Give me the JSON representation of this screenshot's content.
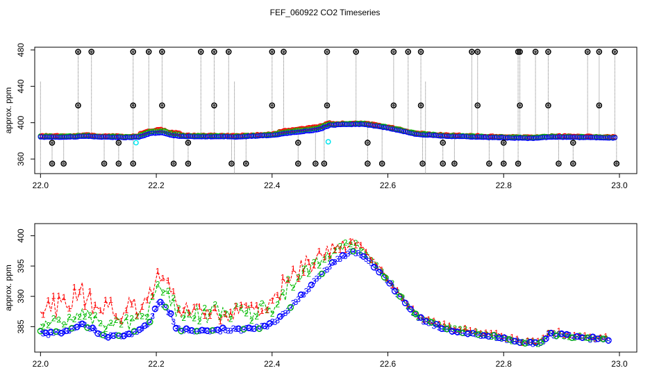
{
  "figure": {
    "title": "FEF_060922  CO2 Timeseries"
  },
  "chart_data": [
    {
      "type": "scatter",
      "title": "FEF_060922  CO2 Timeseries",
      "xlabel": "",
      "ylabel": "approx. ppm",
      "xlim": [
        21.99,
        23.03
      ],
      "ylim": [
        344,
        483
      ],
      "x_ticks": [
        "22.0",
        "22.2",
        "22.4",
        "22.6",
        "22.8",
        "23.0"
      ],
      "y_ticks": [
        "360",
        "400",
        "440",
        "480"
      ],
      "grid": false,
      "colors": {
        "red": "#ff0000",
        "green": "#00bb00",
        "blue": "#0000ff",
        "cyan": "#00e5ee",
        "black": "#000000",
        "spike": "#777777"
      },
      "baseline": [
        [
          22.0,
          384
        ],
        [
          22.05,
          384
        ],
        [
          22.08,
          385
        ],
        [
          22.1,
          384
        ],
        [
          22.15,
          383.5
        ],
        [
          22.17,
          384
        ],
        [
          22.19,
          388
        ],
        [
          22.21,
          389
        ],
        [
          22.225,
          386
        ],
        [
          22.25,
          384.5
        ],
        [
          22.32,
          384.5
        ],
        [
          22.33,
          384
        ],
        [
          22.37,
          385
        ],
        [
          22.4,
          386
        ],
        [
          22.45,
          390
        ],
        [
          22.48,
          392
        ],
        [
          22.5,
          397
        ],
        [
          22.53,
          398
        ],
        [
          22.56,
          398
        ],
        [
          22.6,
          394
        ],
        [
          22.65,
          387
        ],
        [
          22.7,
          385
        ],
        [
          22.78,
          383.5
        ],
        [
          22.82,
          383
        ],
        [
          22.85,
          382.5
        ],
        [
          22.88,
          384
        ],
        [
          22.95,
          383.5
        ],
        [
          22.99,
          383
        ]
      ],
      "highs": [
        22.065,
        22.088,
        22.16,
        22.187,
        22.21,
        22.277,
        22.3,
        22.325,
        22.4,
        22.42,
        22.495,
        22.545,
        22.61,
        22.635,
        22.657,
        22.745,
        22.755,
        22.825,
        22.828,
        22.855,
        22.877,
        22.945,
        22.965,
        22.992
      ],
      "lows": [
        22.02,
        22.04,
        22.11,
        22.135,
        22.16,
        22.23,
        22.255,
        22.33,
        22.355,
        22.445,
        22.475,
        22.49,
        22.565,
        22.59,
        22.66,
        22.695,
        22.715,
        22.775,
        22.8,
        22.825,
        22.895,
        22.92,
        22.995
      ],
      "spikes": [
        22.0,
        22.335,
        22.665
      ],
      "cyan_points": [
        [
          22.165,
          378
        ],
        [
          22.497,
          379
        ]
      ]
    },
    {
      "type": "scatter",
      "title": "",
      "xlabel": "",
      "ylabel": "approx. ppm",
      "xlim": [
        21.99,
        23.03
      ],
      "ylim": [
        380.8,
        402
      ],
      "x_ticks": [
        "22.0",
        "22.2",
        "22.4",
        "22.6",
        "22.8",
        "23.0"
      ],
      "y_ticks": [
        "385",
        "390",
        "395",
        "400"
      ],
      "grid": false,
      "markers": [
        "1",
        "2",
        "3"
      ],
      "series_colors": [
        "#ff0000",
        "#00bb00",
        "#0000ff"
      ],
      "baseline": [
        [
          22.0,
          384
        ],
        [
          22.02,
          383.8
        ],
        [
          22.05,
          384.3
        ],
        [
          22.07,
          385.5
        ],
        [
          22.09,
          384.5
        ],
        [
          22.11,
          383.3
        ],
        [
          22.14,
          383.5
        ],
        [
          22.16,
          383.8
        ],
        [
          22.18,
          385
        ],
        [
          22.19,
          386
        ],
        [
          22.205,
          389
        ],
        [
          22.215,
          388
        ],
        [
          22.225,
          387
        ],
        [
          22.235,
          384.5
        ],
        [
          22.28,
          384.2
        ],
        [
          22.32,
          384.5
        ],
        [
          22.36,
          384.5
        ],
        [
          22.38,
          384.8
        ],
        [
          22.4,
          385.5
        ],
        [
          22.42,
          387
        ],
        [
          22.44,
          389
        ],
        [
          22.46,
          391
        ],
        [
          22.48,
          393
        ],
        [
          22.5,
          395
        ],
        [
          22.52,
          396.5
        ],
        [
          22.54,
          397.5
        ],
        [
          22.56,
          396.5
        ],
        [
          22.58,
          394.5
        ],
        [
          22.6,
          392.5
        ],
        [
          22.62,
          390
        ],
        [
          22.64,
          387.5
        ],
        [
          22.66,
          386
        ],
        [
          22.7,
          384.5
        ],
        [
          22.75,
          383.8
        ],
        [
          22.8,
          383
        ],
        [
          22.83,
          382.3
        ],
        [
          22.86,
          382
        ],
        [
          22.88,
          383.8
        ],
        [
          22.9,
          383.5
        ],
        [
          22.95,
          383
        ],
        [
          22.98,
          382.8
        ]
      ],
      "series": [
        {
          "name": "1",
          "offsets": [
            [
              22.18,
              5
            ],
            [
              22.21,
              4
            ],
            [
              22.3,
              3
            ],
            [
              22.4,
              4
            ],
            [
              22.45,
              5
            ],
            [
              22.5,
              3
            ],
            [
              22.52,
              2
            ],
            [
              22.6,
              0.5
            ],
            [
              22.8,
              0.5
            ],
            [
              22.98,
              0.3
            ]
          ]
        },
        {
          "name": "2",
          "offsets": [
            [
              22.18,
              2
            ],
            [
              22.22,
              3
            ],
            [
              22.4,
              3
            ],
            [
              22.45,
              4
            ],
            [
              22.5,
              2
            ],
            [
              22.55,
              1
            ],
            [
              22.6,
              0.3
            ],
            [
              22.8,
              0.2
            ],
            [
              22.98,
              0.1
            ]
          ]
        },
        {
          "name": "3",
          "offsets": [
            [
              22.0,
              0
            ]
          ]
        }
      ]
    }
  ]
}
